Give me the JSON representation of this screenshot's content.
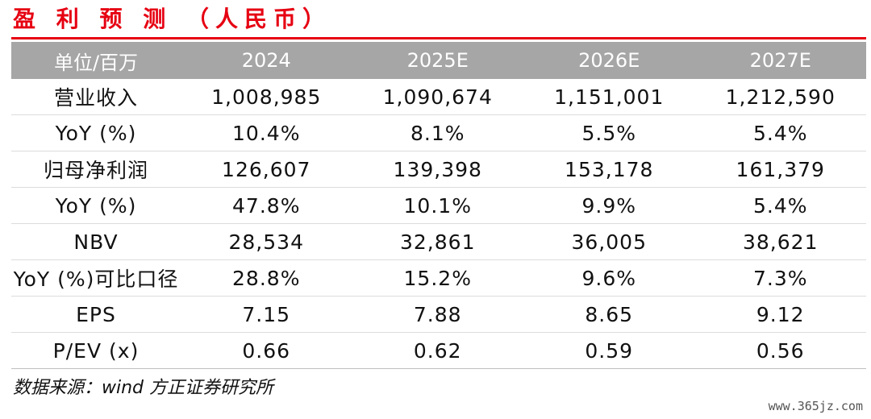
{
  "title": "盈 利 预 测 （人民币）",
  "colors": {
    "accent": "#e60012",
    "header_bg": "#a6a6a6"
  },
  "table": {
    "headers": [
      "单位/百万",
      "2024",
      "2025E",
      "2026E",
      "2027E"
    ],
    "rows": [
      [
        "营业收入",
        "1,008,985",
        "1,090,674",
        "1,151,001",
        "1,212,590"
      ],
      [
        "YoY (%)",
        "10.4%",
        "8.1%",
        "5.5%",
        "5.4%"
      ],
      [
        "归母净利润",
        "126,607",
        "139,398",
        "153,178",
        "161,379"
      ],
      [
        "YoY (%)",
        "47.8%",
        "10.1%",
        "9.9%",
        "5.4%"
      ],
      [
        "NBV",
        "28,534",
        "32,861",
        "36,005",
        "38,621"
      ],
      [
        "YoY (%)可比口径",
        "28.8%",
        "15.2%",
        "9.6%",
        "7.3%"
      ],
      [
        "EPS",
        "7.15",
        "7.88",
        "8.65",
        "9.12"
      ],
      [
        "P/EV (x)",
        "0.66",
        "0.62",
        "0.59",
        "0.56"
      ]
    ]
  },
  "source": "数据来源：wind 方正证券研究所",
  "watermark": "www.365jz.com"
}
